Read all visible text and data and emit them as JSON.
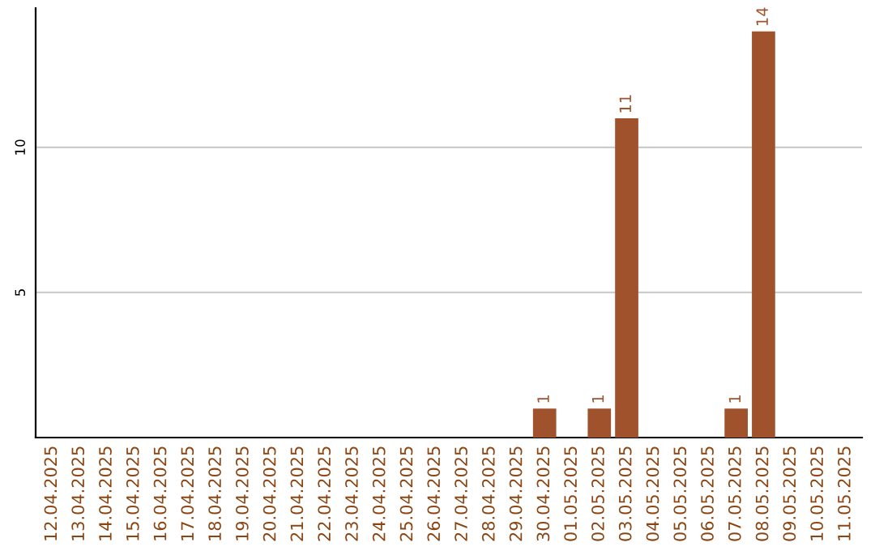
{
  "chart_data": {
    "type": "bar",
    "categories": [
      "12.04.2025",
      "13.04.2025",
      "14.04.2025",
      "15.04.2025",
      "16.04.2025",
      "17.04.2025",
      "18.04.2025",
      "19.04.2025",
      "20.04.2025",
      "21.04.2025",
      "22.04.2025",
      "23.04.2025",
      "24.04.2025",
      "25.04.2025",
      "26.04.2025",
      "27.04.2025",
      "28.04.2025",
      "29.04.2025",
      "30.04.2025",
      "01.05.2025",
      "02.05.2025",
      "03.05.2025",
      "04.05.2025",
      "05.05.2025",
      "06.05.2025",
      "07.05.2025",
      "08.05.2025",
      "09.05.2025",
      "10.05.2025",
      "11.05.2025"
    ],
    "values": [
      0,
      0,
      0,
      0,
      0,
      0,
      0,
      0,
      0,
      0,
      0,
      0,
      0,
      0,
      0,
      0,
      0,
      0,
      1,
      0,
      1,
      11,
      0,
      0,
      0,
      1,
      14,
      0,
      0,
      0
    ],
    "value_labels": [
      null,
      null,
      null,
      null,
      null,
      null,
      null,
      null,
      null,
      null,
      null,
      null,
      null,
      null,
      null,
      null,
      null,
      null,
      "1",
      null,
      "1",
      "11",
      null,
      null,
      null,
      "1",
      "14",
      null,
      null,
      null
    ],
    "color": "#a0522d",
    "ylim": [
      0,
      14.8
    ],
    "yticks": [
      5,
      10
    ],
    "grid": "y"
  }
}
